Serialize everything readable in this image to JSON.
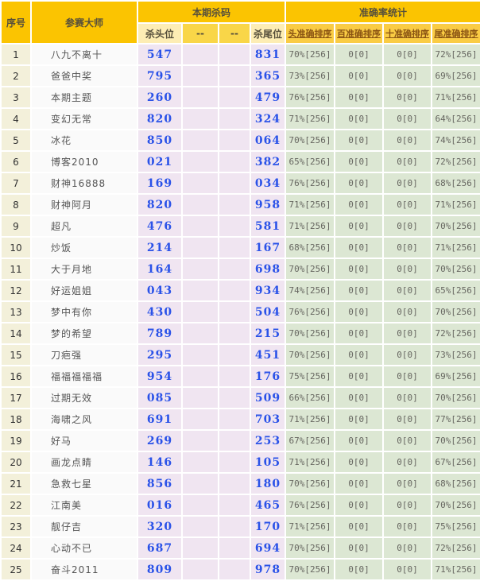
{
  "header": {
    "col_serial": "序号",
    "col_master": "参赛大师",
    "group_kill": "本期杀码",
    "group_accuracy": "准确率统计",
    "sub_kill": [
      "杀头位",
      "--",
      "--",
      "杀尾位"
    ],
    "sub_accuracy": [
      "头准确排序",
      "百准确排序",
      "十准确排序",
      "尾准确排序"
    ]
  },
  "colors": {
    "header_gold": "#FBC401",
    "sub_header_pale": "#FDEDB4",
    "sub_header_yellow": "#F9D648",
    "sub_header_accuracy": "#FACC44",
    "serial_bg": "#F3F0DA",
    "master_bg": "#FAFAFA",
    "kill_bg": "#F0E5F1",
    "accuracy_bg": "#DCE7D3",
    "kill_number_blue": "#2A52E8",
    "link_brown": "#8A5413"
  },
  "rows": [
    {
      "no": "1",
      "master": "八九不离十",
      "head": "547",
      "mid1": "",
      "mid2": "",
      "tail": "831",
      "acc_head": "70%[256]",
      "acc_hundred": "0[0]",
      "acc_ten": "0[0]",
      "acc_tail": "72%[256]"
    },
    {
      "no": "2",
      "master": "爸爸中奖",
      "head": "795",
      "mid1": "",
      "mid2": "",
      "tail": "365",
      "acc_head": "73%[256]",
      "acc_hundred": "0[0]",
      "acc_ten": "0[0]",
      "acc_tail": "69%[256]"
    },
    {
      "no": "3",
      "master": "本期主题",
      "head": "260",
      "mid1": "",
      "mid2": "",
      "tail": "479",
      "acc_head": "76%[256]",
      "acc_hundred": "0[0]",
      "acc_ten": "0[0]",
      "acc_tail": "71%[256]"
    },
    {
      "no": "4",
      "master": "变幻无常",
      "head": "820",
      "mid1": "",
      "mid2": "",
      "tail": "324",
      "acc_head": "71%[256]",
      "acc_hundred": "0[0]",
      "acc_ten": "0[0]",
      "acc_tail": "64%[256]"
    },
    {
      "no": "5",
      "master": "冰花",
      "head": "850",
      "mid1": "",
      "mid2": "",
      "tail": "064",
      "acc_head": "70%[256]",
      "acc_hundred": "0[0]",
      "acc_ten": "0[0]",
      "acc_tail": "74%[256]"
    },
    {
      "no": "6",
      "master": "博客2010",
      "head": "021",
      "mid1": "",
      "mid2": "",
      "tail": "382",
      "acc_head": "65%[256]",
      "acc_hundred": "0[0]",
      "acc_ten": "0[0]",
      "acc_tail": "72%[256]"
    },
    {
      "no": "7",
      "master": "财神16888",
      "head": "169",
      "mid1": "",
      "mid2": "",
      "tail": "034",
      "acc_head": "76%[256]",
      "acc_hundred": "0[0]",
      "acc_ten": "0[0]",
      "acc_tail": "68%[256]"
    },
    {
      "no": "8",
      "master": "财神阿月",
      "head": "820",
      "mid1": "",
      "mid2": "",
      "tail": "958",
      "acc_head": "71%[256]",
      "acc_hundred": "0[0]",
      "acc_ten": "0[0]",
      "acc_tail": "71%[256]"
    },
    {
      "no": "9",
      "master": "超凡",
      "head": "476",
      "mid1": "",
      "mid2": "",
      "tail": "581",
      "acc_head": "71%[256]",
      "acc_hundred": "0[0]",
      "acc_ten": "0[0]",
      "acc_tail": "70%[256]"
    },
    {
      "no": "10",
      "master": "炒饭",
      "head": "214",
      "mid1": "",
      "mid2": "",
      "tail": "167",
      "acc_head": "68%[256]",
      "acc_hundred": "0[0]",
      "acc_ten": "0[0]",
      "acc_tail": "71%[256]"
    },
    {
      "no": "11",
      "master": "大于月地",
      "head": "164",
      "mid1": "",
      "mid2": "",
      "tail": "698",
      "acc_head": "70%[256]",
      "acc_hundred": "0[0]",
      "acc_ten": "0[0]",
      "acc_tail": "70%[256]"
    },
    {
      "no": "12",
      "master": "好运姐姐",
      "head": "043",
      "mid1": "",
      "mid2": "",
      "tail": "934",
      "acc_head": "74%[256]",
      "acc_hundred": "0[0]",
      "acc_ten": "0[0]",
      "acc_tail": "65%[256]"
    },
    {
      "no": "13",
      "master": "梦中有你",
      "head": "430",
      "mid1": "",
      "mid2": "",
      "tail": "504",
      "acc_head": "76%[256]",
      "acc_hundred": "0[0]",
      "acc_ten": "0[0]",
      "acc_tail": "70%[256]"
    },
    {
      "no": "14",
      "master": "梦的希望",
      "head": "789",
      "mid1": "",
      "mid2": "",
      "tail": "215",
      "acc_head": "70%[256]",
      "acc_hundred": "0[0]",
      "acc_ten": "0[0]",
      "acc_tail": "72%[256]"
    },
    {
      "no": "15",
      "master": "刀疤强",
      "head": "295",
      "mid1": "",
      "mid2": "",
      "tail": "451",
      "acc_head": "70%[256]",
      "acc_hundred": "0[0]",
      "acc_ten": "0[0]",
      "acc_tail": "73%[256]"
    },
    {
      "no": "16",
      "master": "福福福福福",
      "head": "954",
      "mid1": "",
      "mid2": "",
      "tail": "176",
      "acc_head": "75%[256]",
      "acc_hundred": "0[0]",
      "acc_ten": "0[0]",
      "acc_tail": "69%[256]"
    },
    {
      "no": "17",
      "master": "过期无效",
      "head": "085",
      "mid1": "",
      "mid2": "",
      "tail": "509",
      "acc_head": "66%[256]",
      "acc_hundred": "0[0]",
      "acc_ten": "0[0]",
      "acc_tail": "70%[256]"
    },
    {
      "no": "18",
      "master": "海啸之风",
      "head": "691",
      "mid1": "",
      "mid2": "",
      "tail": "703",
      "acc_head": "71%[256]",
      "acc_hundred": "0[0]",
      "acc_ten": "0[0]",
      "acc_tail": "77%[256]"
    },
    {
      "no": "19",
      "master": "好马",
      "head": "269",
      "mid1": "",
      "mid2": "",
      "tail": "253",
      "acc_head": "67%[256]",
      "acc_hundred": "0[0]",
      "acc_ten": "0[0]",
      "acc_tail": "70%[256]"
    },
    {
      "no": "20",
      "master": "画龙点睛",
      "head": "146",
      "mid1": "",
      "mid2": "",
      "tail": "105",
      "acc_head": "71%[256]",
      "acc_hundred": "0[0]",
      "acc_ten": "0[0]",
      "acc_tail": "67%[256]"
    },
    {
      "no": "21",
      "master": "急救七星",
      "head": "856",
      "mid1": "",
      "mid2": "",
      "tail": "180",
      "acc_head": "70%[256]",
      "acc_hundred": "0[0]",
      "acc_ten": "0[0]",
      "acc_tail": "68%[256]"
    },
    {
      "no": "22",
      "master": "江南美",
      "head": "016",
      "mid1": "",
      "mid2": "",
      "tail": "465",
      "acc_head": "76%[256]",
      "acc_hundred": "0[0]",
      "acc_ten": "0[0]",
      "acc_tail": "70%[256]"
    },
    {
      "no": "23",
      "master": "靓仔吉",
      "head": "320",
      "mid1": "",
      "mid2": "",
      "tail": "170",
      "acc_head": "71%[256]",
      "acc_hundred": "0[0]",
      "acc_ten": "0[0]",
      "acc_tail": "75%[256]"
    },
    {
      "no": "24",
      "master": "心动不已",
      "head": "687",
      "mid1": "",
      "mid2": "",
      "tail": "694",
      "acc_head": "70%[256]",
      "acc_hundred": "0[0]",
      "acc_ten": "0[0]",
      "acc_tail": "72%[256]"
    },
    {
      "no": "25",
      "master": "奋斗2011",
      "head": "809",
      "mid1": "",
      "mid2": "",
      "tail": "978",
      "acc_head": "70%[256]",
      "acc_hundred": "0[0]",
      "acc_ten": "0[0]",
      "acc_tail": "71%[256]"
    }
  ]
}
